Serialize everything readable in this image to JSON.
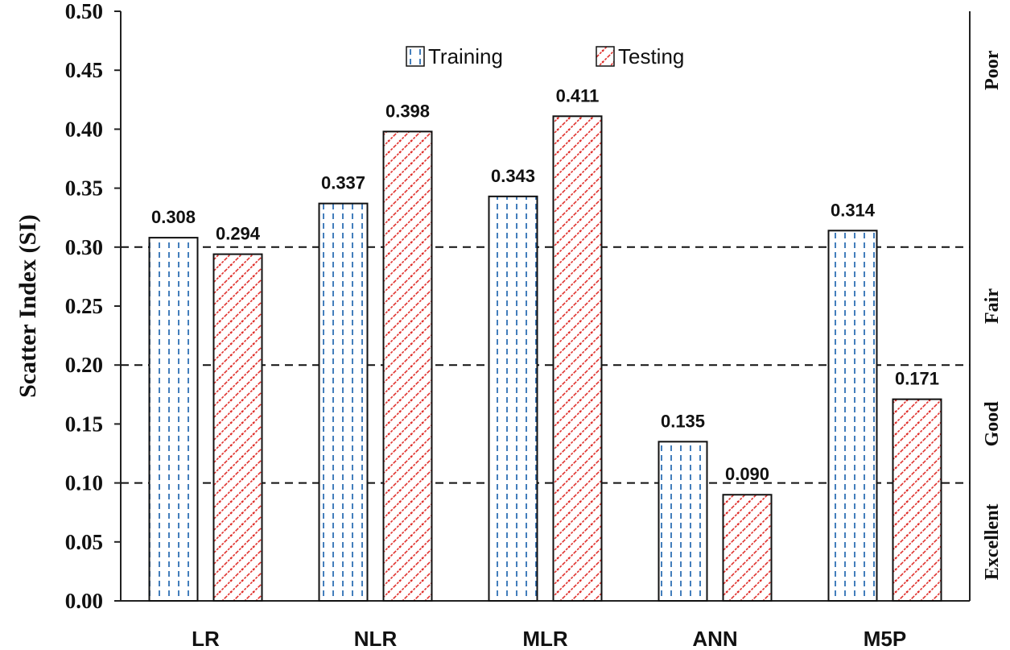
{
  "chart_data": {
    "type": "bar",
    "categories": [
      "LR",
      "NLR",
      "MLR",
      "ANN",
      "M5P"
    ],
    "series": [
      {
        "name": "Training",
        "values": [
          0.308,
          0.337,
          0.343,
          0.135,
          0.314
        ],
        "labels": [
          "0.308",
          "0.337",
          "0.343",
          "0.135",
          "0.314"
        ],
        "color": "#2e6fb5",
        "pattern": "dashed-vertical"
      },
      {
        "name": "Testing",
        "values": [
          0.294,
          0.398,
          0.411,
          0.09,
          0.171
        ],
        "labels": [
          "0.294",
          "0.398",
          "0.411",
          "0.090",
          "0.171"
        ],
        "color": "#e0322e",
        "pattern": "diagonal-zigzag"
      }
    ],
    "ylabel": "Scatter Index (SI)",
    "xlabel": "",
    "ylim": [
      0,
      0.5
    ],
    "yticks": [
      "0.00",
      "0.05",
      "0.10",
      "0.15",
      "0.20",
      "0.25",
      "0.30",
      "0.35",
      "0.40",
      "0.45",
      "0.50"
    ],
    "thresholds": [
      0.1,
      0.2,
      0.3
    ],
    "bands": [
      {
        "label": "Excellent",
        "from": 0.0,
        "to": 0.1
      },
      {
        "label": "Good",
        "from": 0.1,
        "to": 0.2
      },
      {
        "label": "Fair",
        "from": 0.2,
        "to": 0.3
      },
      {
        "label": "Poor",
        "from": 0.3,
        "to": 0.5
      }
    ],
    "legend": "top-center",
    "grid": false
  }
}
